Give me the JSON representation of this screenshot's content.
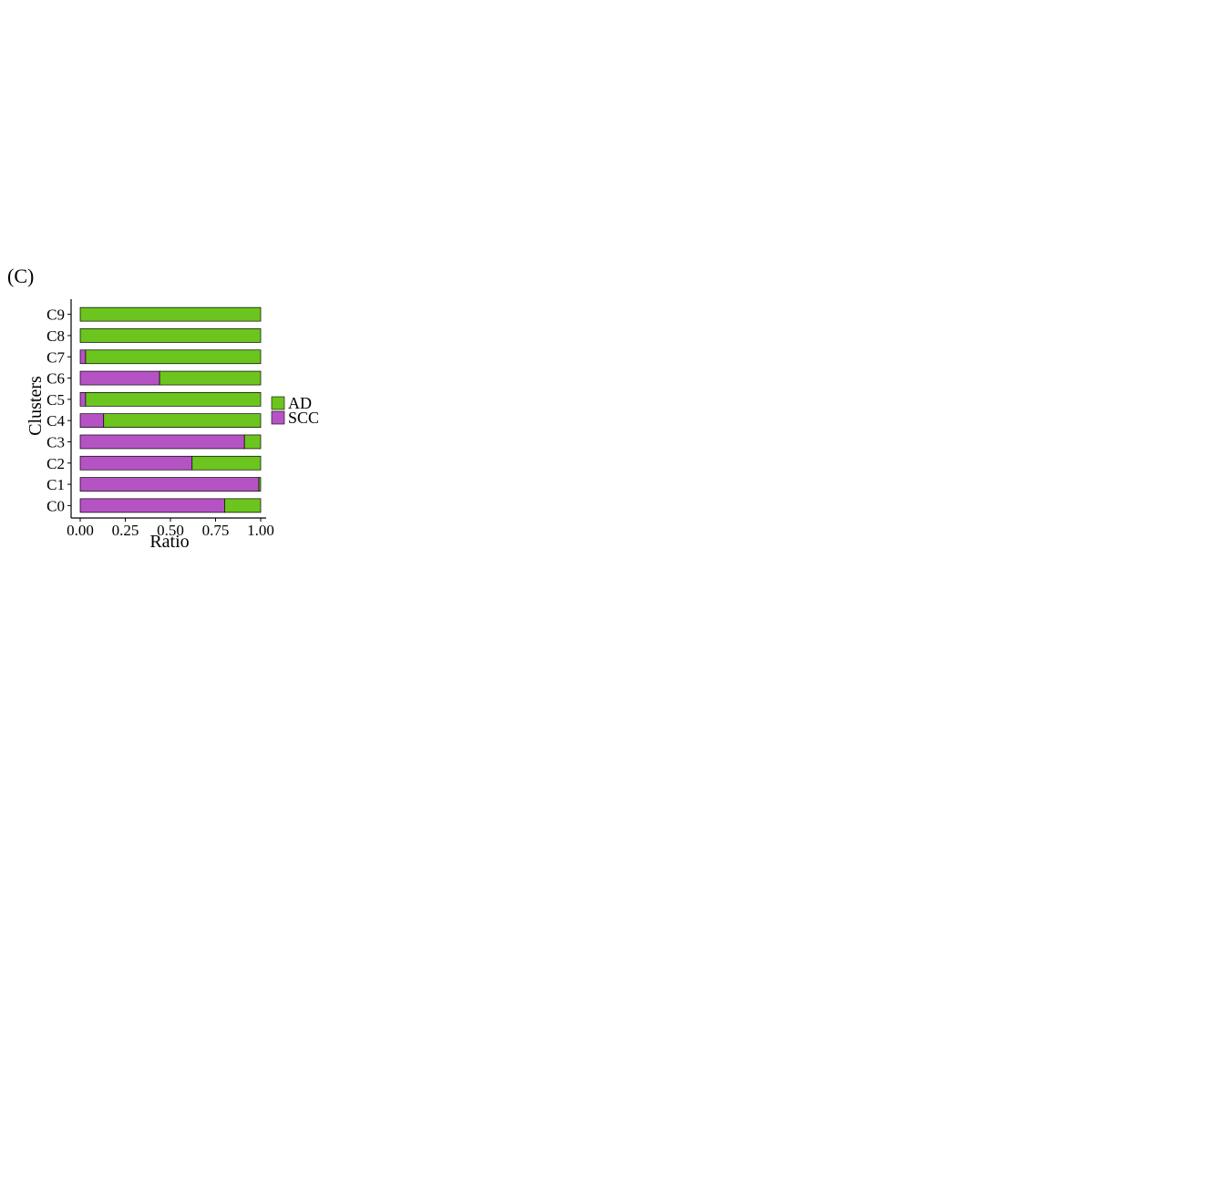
{
  "figure": {
    "panel_letter": "(C)"
  },
  "chart_data": {
    "type": "bar",
    "orientation": "horizontal",
    "stacked": true,
    "categories": [
      "C9",
      "C8",
      "C7",
      "C6",
      "C5",
      "C4",
      "C3",
      "C2",
      "C1",
      "C0"
    ],
    "series": [
      {
        "name": "SCC",
        "values": [
          0.0,
          0.0,
          0.03,
          0.44,
          0.03,
          0.13,
          0.91,
          0.62,
          0.99,
          0.8
        ]
      },
      {
        "name": "AD",
        "values": [
          1.0,
          1.0,
          0.97,
          0.56,
          0.97,
          0.87,
          0.09,
          0.38,
          0.01,
          0.2
        ]
      }
    ],
    "xlabel": "Ratio",
    "ylabel": "Clusters",
    "xlim": [
      0,
      1
    ],
    "xticks": [
      "0.00",
      "0.25",
      "0.50",
      "0.75",
      "1.00"
    ],
    "legend_entries": [
      "AD",
      "SCC"
    ],
    "legend_position": "right",
    "grid": false,
    "colors": {
      "AD": "#6cc51e",
      "SCC": "#b653c4"
    }
  }
}
